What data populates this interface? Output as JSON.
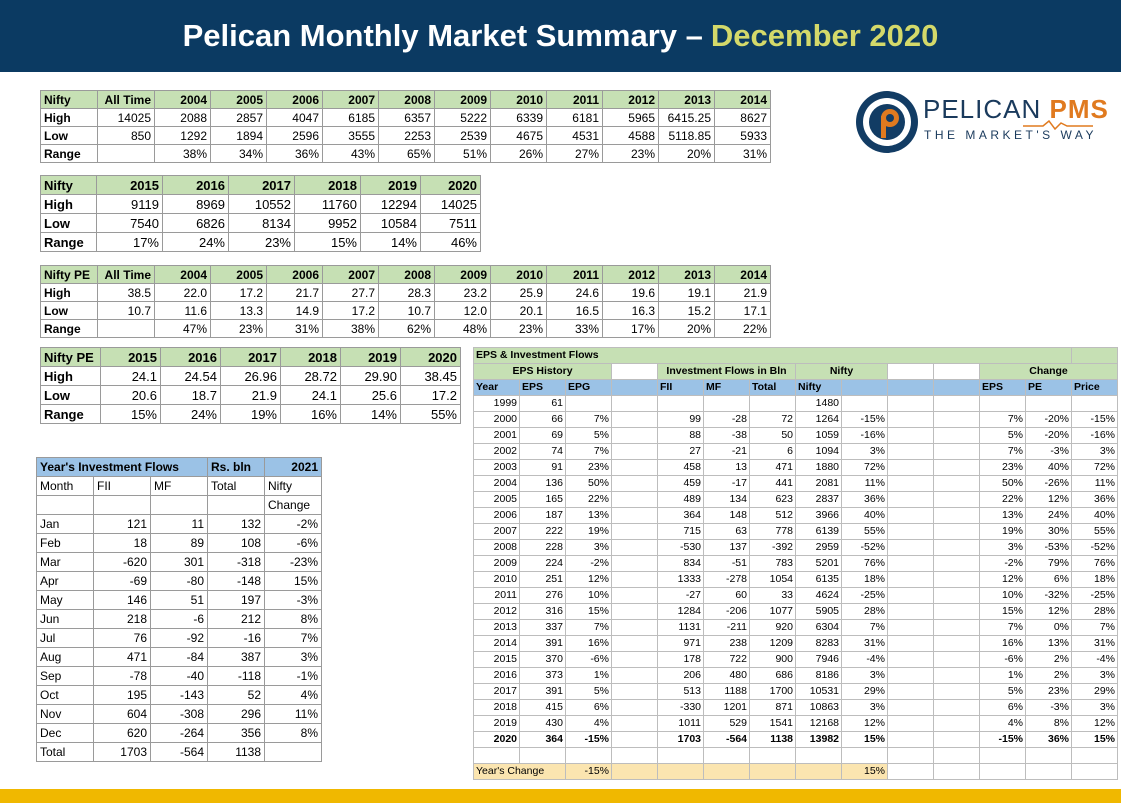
{
  "header": {
    "title_main": "Pelican Monthly Market Summary –",
    "title_highlight": "December 2020"
  },
  "logo": {
    "name": "PELICAN",
    "suffix": "PMS",
    "tagline": "THE MARKET'S WAY"
  },
  "nifty_table_1": {
    "headers": [
      "Nifty",
      "All Time",
      "2004",
      "2005",
      "2006",
      "2007",
      "2008",
      "2009",
      "2010",
      "2011",
      "2012",
      "2013",
      "2014"
    ],
    "rows": [
      [
        "High",
        "14025",
        "2088",
        "2857",
        "4047",
        "6185",
        "6357",
        "5222",
        "6339",
        "6181",
        "5965",
        "6415.25",
        "8627"
      ],
      [
        "Low",
        "850",
        "1292",
        "1894",
        "2596",
        "3555",
        "2253",
        "2539",
        "4675",
        "4531",
        "4588",
        "5118.85",
        "5933"
      ],
      [
        "Range",
        "",
        "38%",
        "34%",
        "36%",
        "43%",
        "65%",
        "51%",
        "26%",
        "27%",
        "23%",
        "20%",
        "31%"
      ]
    ]
  },
  "nifty_table_2": {
    "headers": [
      "Nifty",
      "2015",
      "2016",
      "2017",
      "2018",
      "2019",
      "2020"
    ],
    "rows": [
      [
        "High",
        "9119",
        "8969",
        "10552",
        "11760",
        "12294",
        "14025"
      ],
      [
        "Low",
        "7540",
        "6826",
        "8134",
        "9952",
        "10584",
        "7511"
      ],
      [
        "Range",
        "17%",
        "24%",
        "23%",
        "15%",
        "14%",
        "46%"
      ]
    ]
  },
  "nifty_pe_table_1": {
    "headers": [
      "Nifty PE",
      "All Time",
      "2004",
      "2005",
      "2006",
      "2007",
      "2008",
      "2009",
      "2010",
      "2011",
      "2012",
      "2013",
      "2014"
    ],
    "rows": [
      [
        "High",
        "38.5",
        "22.0",
        "17.2",
        "21.7",
        "27.7",
        "28.3",
        "23.2",
        "25.9",
        "24.6",
        "19.6",
        "19.1",
        "21.9"
      ],
      [
        "Low",
        "10.7",
        "11.6",
        "13.3",
        "14.9",
        "17.2",
        "10.7",
        "12.0",
        "20.1",
        "16.5",
        "16.3",
        "15.2",
        "17.1"
      ],
      [
        "Range",
        "",
        "47%",
        "23%",
        "31%",
        "38%",
        "62%",
        "48%",
        "23%",
        "33%",
        "17%",
        "20%",
        "22%"
      ]
    ]
  },
  "nifty_pe_table_2": {
    "headers": [
      "Nifty PE",
      "2015",
      "2016",
      "2017",
      "2018",
      "2019",
      "2020"
    ],
    "rows": [
      [
        "High",
        "24.1",
        "24.54",
        "26.96",
        "28.72",
        "29.90",
        "38.45"
      ],
      [
        "Low",
        "20.6",
        "18.7",
        "21.9",
        "24.1",
        "25.6",
        "17.2"
      ],
      [
        "Range",
        "15%",
        "24%",
        "19%",
        "16%",
        "14%",
        "55%"
      ]
    ]
  },
  "investment_flows": {
    "title_row": [
      "Year's Investment Flows",
      "Rs. bln",
      "2021"
    ],
    "header_row": [
      "Month",
      "FII",
      "MF",
      "Total",
      "Nifty"
    ],
    "sub_header": "Change",
    "rows": [
      [
        "Jan",
        "121",
        "11",
        "132",
        "-2%"
      ],
      [
        "Feb",
        "18",
        "89",
        "108",
        "-6%"
      ],
      [
        "Mar",
        "-620",
        "301",
        "-318",
        "-23%"
      ],
      [
        "Apr",
        "-69",
        "-80",
        "-148",
        "15%"
      ],
      [
        "May",
        "146",
        "51",
        "197",
        "-3%"
      ],
      [
        "Jun",
        "218",
        "-6",
        "212",
        "8%"
      ],
      [
        "Jul",
        "76",
        "-92",
        "-16",
        "7%"
      ],
      [
        "Aug",
        "471",
        "-84",
        "387",
        "3%"
      ],
      [
        "Sep",
        "-78",
        "-40",
        "-118",
        "-1%"
      ],
      [
        "Oct",
        "195",
        "-143",
        "52",
        "4%"
      ],
      [
        "Nov",
        "604",
        "-308",
        "296",
        "11%"
      ],
      [
        "Dec",
        "620",
        "-264",
        "356",
        "8%"
      ],
      [
        "Total",
        "1703",
        "-564",
        "1138",
        ""
      ]
    ]
  },
  "eps_flows": {
    "title": "EPS & Investment Flows",
    "group_headers": {
      "eps_history": "EPS History",
      "investment": "Investment Flows in Bln",
      "nifty": "Nifty",
      "change": "Change"
    },
    "col_headers": {
      "year": "Year",
      "eps": "EPS",
      "epg": "EPG",
      "fii": "FII",
      "mf": "MF",
      "total": "Total",
      "nifty": "Nifty",
      "c_eps": "EPS",
      "c_pe": "PE",
      "c_price": "Price"
    },
    "rows": [
      [
        "1999",
        "61",
        "",
        "",
        "",
        "",
        "1480",
        "",
        "",
        "",
        ""
      ],
      [
        "2000",
        "66",
        "7%",
        "99",
        "-28",
        "72",
        "1264",
        "-15%",
        "7%",
        "-20%",
        "-15%"
      ],
      [
        "2001",
        "69",
        "5%",
        "88",
        "-38",
        "50",
        "1059",
        "-16%",
        "5%",
        "-20%",
        "-16%"
      ],
      [
        "2002",
        "74",
        "7%",
        "27",
        "-21",
        "6",
        "1094",
        "3%",
        "7%",
        "-3%",
        "3%"
      ],
      [
        "2003",
        "91",
        "23%",
        "458",
        "13",
        "471",
        "1880",
        "72%",
        "23%",
        "40%",
        "72%"
      ],
      [
        "2004",
        "136",
        "50%",
        "459",
        "-17",
        "441",
        "2081",
        "11%",
        "50%",
        "-26%",
        "11%"
      ],
      [
        "2005",
        "165",
        "22%",
        "489",
        "134",
        "623",
        "2837",
        "36%",
        "22%",
        "12%",
        "36%"
      ],
      [
        "2006",
        "187",
        "13%",
        "364",
        "148",
        "512",
        "3966",
        "40%",
        "13%",
        "24%",
        "40%"
      ],
      [
        "2007",
        "222",
        "19%",
        "715",
        "63",
        "778",
        "6139",
        "55%",
        "19%",
        "30%",
        "55%"
      ],
      [
        "2008",
        "228",
        "3%",
        "-530",
        "137",
        "-392",
        "2959",
        "-52%",
        "3%",
        "-53%",
        "-52%"
      ],
      [
        "2009",
        "224",
        "-2%",
        "834",
        "-51",
        "783",
        "5201",
        "76%",
        "-2%",
        "79%",
        "76%"
      ],
      [
        "2010",
        "251",
        "12%",
        "1333",
        "-278",
        "1054",
        "6135",
        "18%",
        "12%",
        "6%",
        "18%"
      ],
      [
        "2011",
        "276",
        "10%",
        "-27",
        "60",
        "33",
        "4624",
        "-25%",
        "10%",
        "-32%",
        "-25%"
      ],
      [
        "2012",
        "316",
        "15%",
        "1284",
        "-206",
        "1077",
        "5905",
        "28%",
        "15%",
        "12%",
        "28%"
      ],
      [
        "2013",
        "337",
        "7%",
        "1131",
        "-211",
        "920",
        "6304",
        "7%",
        "7%",
        "0%",
        "7%"
      ],
      [
        "2014",
        "391",
        "16%",
        "971",
        "238",
        "1209",
        "8283",
        "31%",
        "16%",
        "13%",
        "31%"
      ],
      [
        "2015",
        "370",
        "-6%",
        "178",
        "722",
        "900",
        "7946",
        "-4%",
        "-6%",
        "2%",
        "-4%"
      ],
      [
        "2016",
        "373",
        "1%",
        "206",
        "480",
        "686",
        "8186",
        "3%",
        "1%",
        "2%",
        "3%"
      ],
      [
        "2017",
        "391",
        "5%",
        "513",
        "1188",
        "1700",
        "10531",
        "29%",
        "5%",
        "23%",
        "29%"
      ],
      [
        "2018",
        "415",
        "6%",
        "-330",
        "1201",
        "871",
        "10863",
        "3%",
        "6%",
        "-3%",
        "3%"
      ],
      [
        "2019",
        "430",
        "4%",
        "1011",
        "529",
        "1541",
        "12168",
        "12%",
        "4%",
        "8%",
        "12%"
      ],
      [
        "2020",
        "364",
        "-15%",
        "1703",
        "-564",
        "1138",
        "13982",
        "15%",
        "-15%",
        "36%",
        "15%"
      ]
    ],
    "years_change": {
      "label": "Year's Change",
      "epg": "-15%",
      "nifty_change": "15%"
    }
  }
}
